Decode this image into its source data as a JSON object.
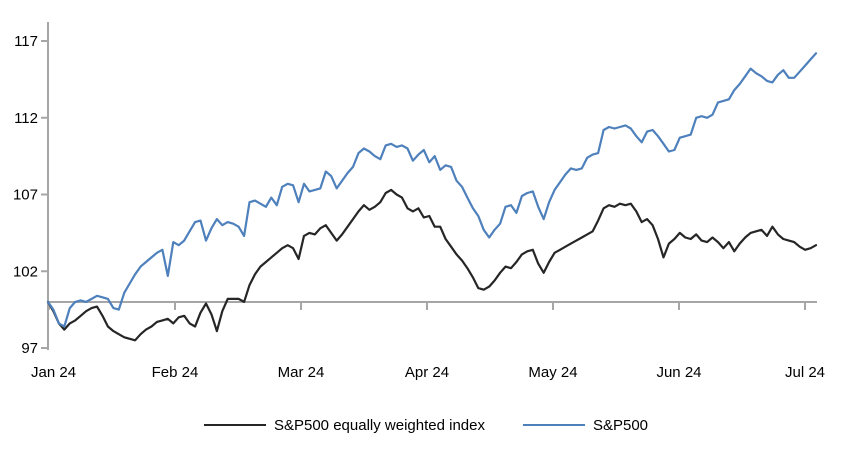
{
  "chart_data": {
    "type": "line",
    "title": "",
    "x_axis": {
      "description": "Daily values, January 2024 through mid-July 2024",
      "tick_labels": [
        "Jan 24",
        "Feb 24",
        "Mar 24",
        "Apr 24",
        "May 24",
        "Jun 24",
        "Jul 24"
      ]
    },
    "y_axis": {
      "min": 97,
      "max": 117,
      "ticks": [
        97,
        102,
        107,
        112,
        117
      ],
      "baseline_value": 100
    },
    "grid": "off",
    "legend_position": "bottom-center",
    "axis_color": "#a6a6a6",
    "series": [
      {
        "name": "S&P500 equally weighted index",
        "color": "#262626",
        "values": [
          100,
          99.4,
          98.6,
          98.2,
          98.6,
          98.8,
          99.1,
          99.4,
          99.6,
          99.7,
          99.1,
          98.4,
          98.1,
          97.9,
          97.7,
          97.6,
          97.5,
          97.9,
          98.2,
          98.4,
          98.7,
          98.8,
          98.9,
          98.6,
          99,
          99.1,
          98.6,
          98.4,
          99.3,
          99.9,
          99.2,
          98.1,
          99.4,
          100.2,
          100.2,
          100.2,
          100,
          101.1,
          101.8,
          102.3,
          102.6,
          102.9,
          103.2,
          103.5,
          103.7,
          103.5,
          102.8,
          104.3,
          104.5,
          104.4,
          104.8,
          105,
          104.5,
          104,
          104.4,
          104.9,
          105.4,
          105.9,
          106.3,
          106,
          106.2,
          106.5,
          107.1,
          107.3,
          107,
          106.8,
          106.1,
          105.9,
          106.1,
          105.5,
          105.6,
          104.9,
          104.9,
          104.1,
          103.6,
          103.1,
          102.7,
          102.2,
          101.6,
          100.9,
          100.8,
          101,
          101.4,
          101.9,
          102.3,
          102.2,
          102.6,
          103.1,
          103.3,
          103.4,
          102.5,
          101.9,
          102.6,
          103.2,
          103.4,
          103.6,
          103.8,
          104,
          104.2,
          104.4,
          104.6,
          105.3,
          106.1,
          106.3,
          106.2,
          106.4,
          106.3,
          106.4,
          105.9,
          105.2,
          105.4,
          105,
          104.1,
          102.9,
          103.8,
          104.1,
          104.5,
          104.2,
          104.1,
          104.4,
          104,
          103.9,
          104.2,
          103.9,
          103.5,
          103.9,
          103.3,
          103.8,
          104.2,
          104.5,
          104.6,
          104.7,
          104.3,
          104.9,
          104.4,
          104.1,
          104,
          103.9,
          103.6,
          103.4,
          103.5,
          103.7
        ]
      },
      {
        "name": "S&P500",
        "color": "#4e80bc",
        "values": [
          100,
          99.5,
          98.6,
          98.4,
          99.6,
          100,
          100.1,
          100,
          100.2,
          100.4,
          100.3,
          100.2,
          99.6,
          99.5,
          100.6,
          101.2,
          101.8,
          102.3,
          102.6,
          102.9,
          103.2,
          103.4,
          101.7,
          103.9,
          103.7,
          104,
          104.6,
          105.2,
          105.3,
          104,
          104.8,
          105.4,
          105,
          105.2,
          105.1,
          104.9,
          104.3,
          106.5,
          106.6,
          106.4,
          106.2,
          106.8,
          106.3,
          107.5,
          107.7,
          107.6,
          106.5,
          107.7,
          107.2,
          107.3,
          107.4,
          108.5,
          108.2,
          107.4,
          107.9,
          108.4,
          108.8,
          109.7,
          110,
          109.8,
          109.5,
          109.3,
          110.2,
          110.3,
          110.1,
          110.2,
          110,
          109.2,
          109.6,
          109.9,
          109.1,
          109.5,
          108.6,
          108.9,
          108.8,
          107.9,
          107.5,
          106.8,
          106.1,
          105.6,
          104.7,
          104.2,
          104.7,
          105.1,
          106.2,
          106.3,
          105.8,
          106.9,
          107.1,
          107.2,
          106.2,
          105.4,
          106.5,
          107.3,
          107.8,
          108.3,
          108.7,
          108.6,
          108.7,
          109.4,
          109.6,
          109.7,
          111.2,
          111.4,
          111.3,
          111.4,
          111.5,
          111.3,
          110.8,
          110.4,
          111.1,
          111.2,
          110.8,
          110.3,
          109.8,
          109.9,
          110.7,
          110.8,
          110.9,
          112,
          112.1,
          112,
          112.2,
          113,
          113.1,
          113.2,
          113.8,
          114.2,
          114.7,
          115.2,
          114.9,
          114.7,
          114.4,
          114.3,
          114.8,
          115.1,
          114.6,
          114.6,
          115,
          115.4,
          115.8,
          116.2
        ]
      }
    ]
  },
  "legend": {
    "items": [
      {
        "label": "S&P500 equally weighted index"
      },
      {
        "label": "S&P500"
      }
    ]
  }
}
